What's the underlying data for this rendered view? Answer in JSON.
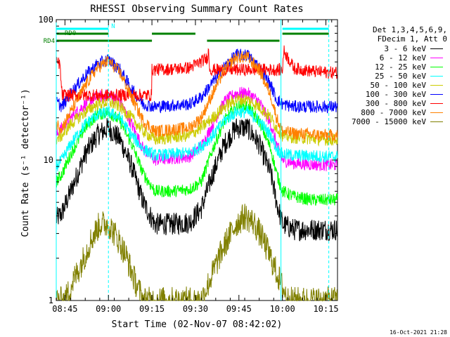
{
  "chart_data": {
    "type": "line",
    "title": "RHESSI Observing Summary Count Rates",
    "xlabel": "Start Time (02-Nov-07 08:42:02)",
    "ylabel": "Count Rate (s⁻¹ detector⁻¹)",
    "yscale": "log",
    "ylim": [
      1,
      100
    ],
    "xlim_minutes": [
      0,
      97
    ],
    "xticks": [
      {
        "label": "08:45",
        "minute": 3
      },
      {
        "label": "09:00",
        "minute": 18
      },
      {
        "label": "09:15",
        "minute": 33
      },
      {
        "label": "09:30",
        "minute": 48
      },
      {
        "label": "09:45",
        "minute": 63
      },
      {
        "label": "10:00",
        "minute": 78
      },
      {
        "label": "10:15",
        "minute": 93
      }
    ],
    "yticks": [
      {
        "label": "1",
        "value": 1
      },
      {
        "label": "10",
        "value": 10
      },
      {
        "label": "100",
        "value": 100
      }
    ],
    "legend_header": [
      "Det 1,3,4,5,6,9,",
      "FDecim 1, Att 0"
    ],
    "series": [
      {
        "name": "3 - 6 keV",
        "color": "#000000",
        "x": [
          0,
          2,
          5,
          10,
          14,
          18,
          22,
          26,
          30,
          34,
          40,
          46,
          50,
          54,
          58,
          62,
          66,
          70,
          74,
          76,
          78,
          82,
          88,
          94,
          97
        ],
        "y": [
          3.8,
          4.2,
          6,
          11,
          15,
          17,
          14,
          9,
          5,
          3.5,
          3.5,
          3.6,
          4.5,
          8,
          13,
          17,
          17,
          13,
          8,
          5,
          3.5,
          3.2,
          3.2,
          3.2,
          3.2
        ]
      },
      {
        "name": "6 - 12 keV",
        "color": "#ff00ff",
        "x": [
          0,
          2,
          5,
          10,
          14,
          18,
          22,
          26,
          30,
          34,
          40,
          46,
          50,
          54,
          58,
          62,
          66,
          70,
          74,
          76,
          78,
          82,
          88,
          94,
          97
        ],
        "y": [
          15,
          17,
          20,
          25,
          28,
          29,
          26,
          18,
          12,
          10,
          10.3,
          10.6,
          12.5,
          18,
          26,
          30,
          30,
          26,
          18,
          13,
          10,
          9.5,
          9.3,
          9.2,
          9.2
        ]
      },
      {
        "name": "12 - 25 keV",
        "color": "#00ff00",
        "x": [
          0,
          2,
          5,
          10,
          14,
          18,
          22,
          26,
          30,
          34,
          40,
          46,
          50,
          54,
          58,
          62,
          66,
          70,
          74,
          76,
          78,
          82,
          88,
          94,
          97
        ],
        "y": [
          7,
          8,
          11,
          17,
          21,
          22,
          19,
          13,
          8,
          6,
          6,
          6.2,
          7,
          12,
          19,
          24,
          24,
          19,
          12,
          8,
          6,
          5.5,
          5.2,
          5.2,
          5.2
        ]
      },
      {
        "name": "25 - 50 keV",
        "color": "#00ffff",
        "x": [
          0,
          2,
          5,
          10,
          14,
          18,
          22,
          26,
          30,
          34,
          40,
          46,
          50,
          54,
          58,
          62,
          66,
          70,
          74,
          76,
          78,
          82,
          88,
          94,
          97
        ],
        "y": [
          9,
          10,
          13,
          18,
          21,
          22,
          20,
          15,
          12,
          10.8,
          11,
          11.3,
          12.5,
          15,
          19,
          22,
          22,
          19,
          15,
          12,
          11,
          10.8,
          10.7,
          10.6,
          10.6
        ]
      },
      {
        "name": "50 - 100 keV",
        "color": "#cccc00",
        "x": [
          0,
          2,
          5,
          10,
          14,
          18,
          22,
          26,
          30,
          34,
          40,
          46,
          50,
          54,
          58,
          62,
          66,
          70,
          74,
          76,
          78,
          82,
          88,
          94,
          97
        ],
        "y": [
          14,
          15,
          18,
          22,
          25,
          26,
          24,
          20,
          16,
          14,
          14.5,
          15,
          17,
          20,
          24,
          27,
          27,
          24,
          20,
          17,
          15,
          14.5,
          14.2,
          14,
          14
        ]
      },
      {
        "name": "100 - 300 keV",
        "color": "#0000ff",
        "x": [
          0,
          2,
          5,
          10,
          14,
          18,
          22,
          26,
          30,
          34,
          40,
          46,
          50,
          54,
          58,
          62,
          66,
          70,
          74,
          76,
          78,
          82,
          88,
          94,
          97
        ],
        "y": [
          26,
          24,
          30,
          40,
          48,
          52,
          44,
          32,
          25,
          24,
          24.5,
          25,
          28,
          36,
          46,
          56,
          56,
          46,
          34,
          27,
          25,
          24,
          24,
          24,
          24
        ]
      },
      {
        "name": "300 - 800 keV",
        "color": "#ff0000",
        "x": [
          0,
          1.2,
          2,
          32.9,
          33,
          40,
          46,
          52,
          52.5,
          53,
          78,
          78.5,
          82,
          88,
          94,
          97
        ],
        "y": [
          49,
          49,
          29,
          29,
          44,
          44.5,
          45.5,
          53,
          60,
          44,
          44,
          60,
          45,
          43,
          42,
          42
        ]
      },
      {
        "name": "800 - 7000 keV",
        "color": "#ff8000",
        "x": [
          0,
          2,
          5,
          10,
          14,
          18,
          22,
          26,
          30,
          34,
          40,
          46,
          50,
          54,
          58,
          62,
          66,
          70,
          74,
          76,
          78,
          82,
          88,
          94,
          97
        ],
        "y": [
          18,
          17,
          22,
          34,
          45,
          51,
          42,
          28,
          19,
          16,
          16.5,
          17,
          20,
          30,
          44,
          54,
          54,
          44,
          29,
          20,
          16,
          15.5,
          15.2,
          15,
          15
        ]
      },
      {
        "name": "7000 - 15000 keV",
        "color": "#808000",
        "x": [
          0,
          3,
          6,
          9,
          12,
          15,
          18,
          21,
          24,
          27,
          30,
          33,
          40,
          46,
          50,
          53,
          56,
          59,
          62,
          65,
          68,
          71,
          74,
          77,
          80,
          84,
          88,
          94,
          97
        ],
        "y": [
          1,
          1,
          1.4,
          1.9,
          2.7,
          3.5,
          3.5,
          2.8,
          2.1,
          1.4,
          1,
          1,
          1,
          1,
          1,
          1.4,
          2,
          2.7,
          3.5,
          4,
          3.6,
          2.8,
          2,
          1.4,
          1,
          1,
          1,
          1,
          1
        ]
      }
    ],
    "state_bars": [
      {
        "label": "N",
        "color": "#00ffff",
        "segments": [
          [
            0,
            18
          ],
          [
            78,
            94
          ]
        ]
      },
      {
        "label": "RD0",
        "color": "#008000",
        "segments": [
          [
            0,
            18
          ],
          [
            33,
            48
          ],
          [
            78,
            94
          ]
        ]
      },
      {
        "label": "RD4",
        "color": "#008000",
        "segments": [
          [
            0,
            33
          ],
          [
            52,
            77
          ]
        ]
      }
    ],
    "vlines_solid_cyan_minutes": [
      0,
      77.5
    ],
    "vlines_dashed_cyan_minutes": [
      18,
      94
    ]
  },
  "timestamp": "16-Oct-2021 21:28"
}
